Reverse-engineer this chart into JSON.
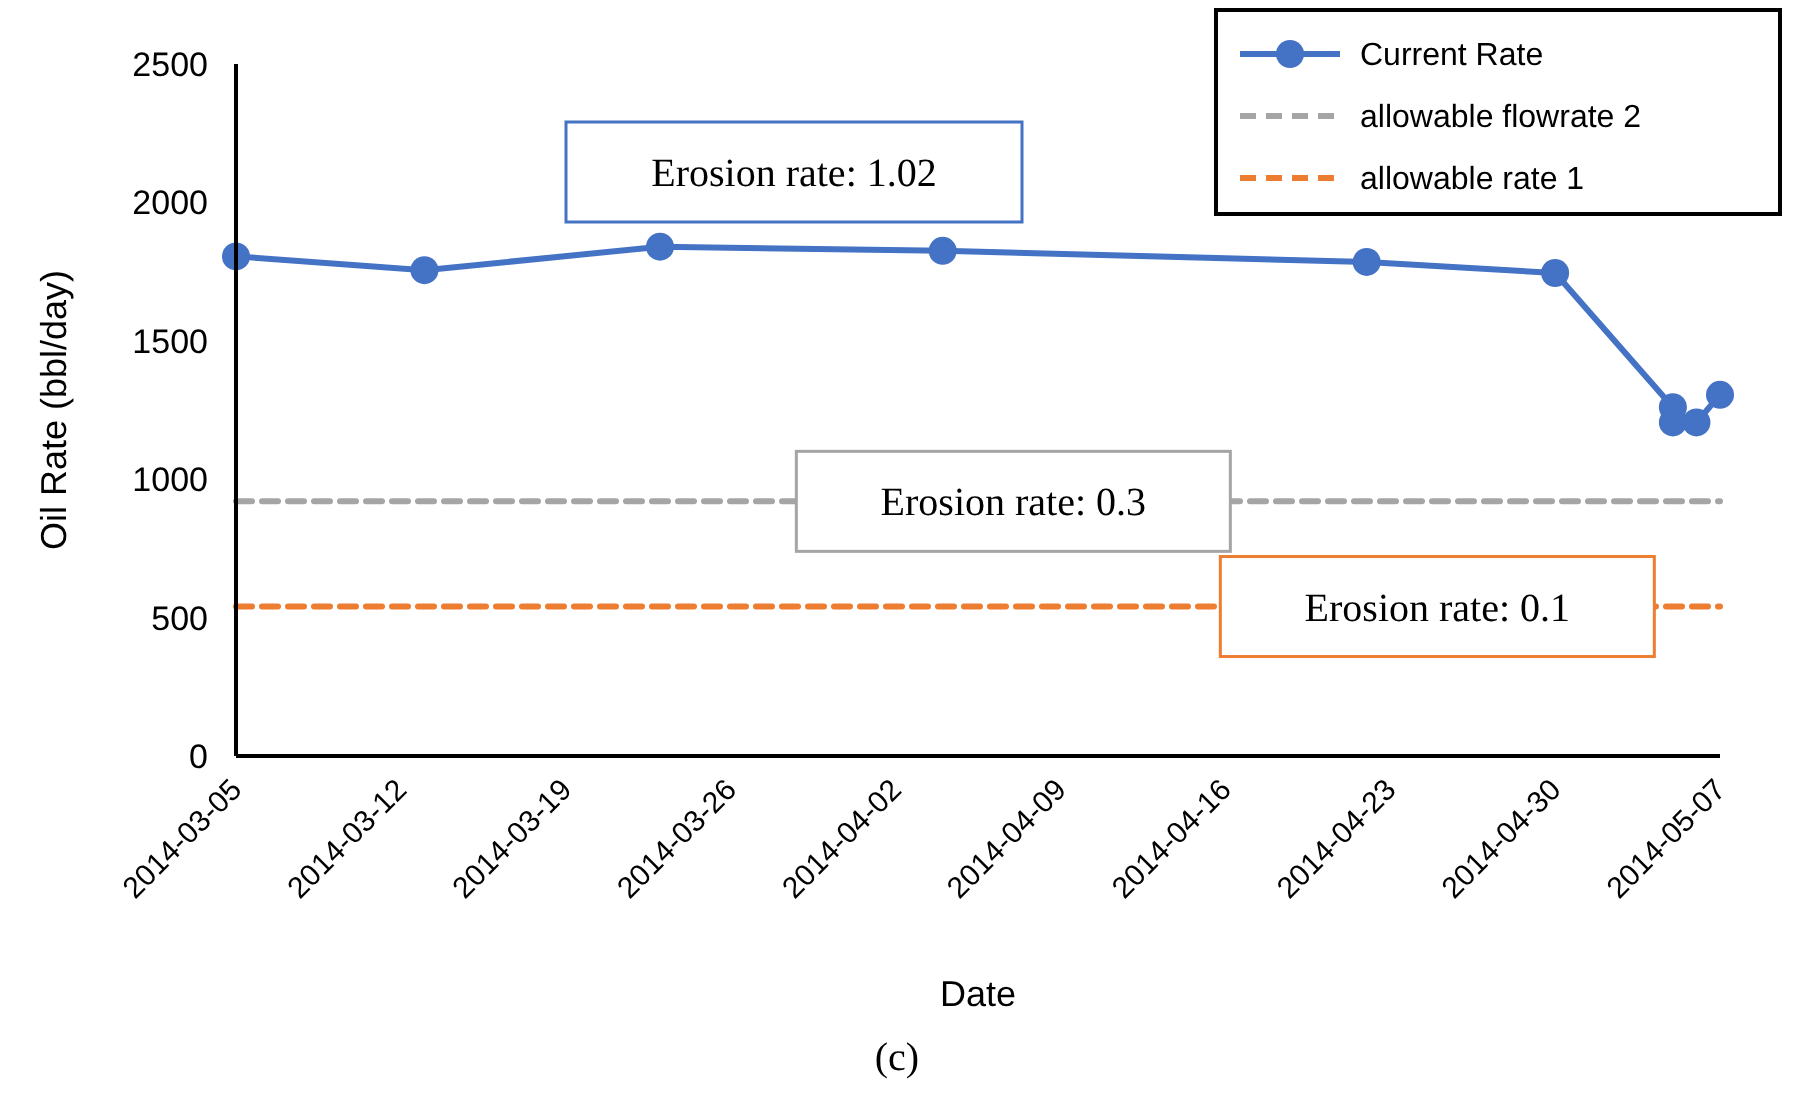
{
  "chart_data": {
    "type": "line",
    "xlabel": "Date",
    "ylabel": "Oil Rate (bbl/day)",
    "xlim": [
      "2014-03-05",
      "2014-05-07"
    ],
    "xticks": [
      "2014-03-05",
      "2014-03-12",
      "2014-03-19",
      "2014-03-26",
      "2014-04-02",
      "2014-04-09",
      "2014-04-16",
      "2014-04-23",
      "2014-04-30",
      "2014-05-07"
    ],
    "ylim": [
      0,
      2500
    ],
    "yticks": [
      0,
      500,
      1000,
      1500,
      2000,
      2500
    ],
    "grid": false,
    "legend": "top right",
    "series": [
      {
        "name": "Current Rate",
        "color": "#4472c4",
        "marker": "circle",
        "line_style": "solid",
        "x": [
          "2014-03-05",
          "2014-03-13",
          "2014-03-23",
          "2014-04-04",
          "2014-04-22",
          "2014-04-30",
          "2014-05-05",
          "2014-05-05",
          "2014-05-06",
          "2014-05-07"
        ],
        "values": [
          1805,
          1755,
          1840,
          1825,
          1785,
          1745,
          1260,
          1205,
          1205,
          1305
        ]
      },
      {
        "name": "allowable flowrate 2",
        "color": "#a5a5a5",
        "marker": "none",
        "line_style": "dashed",
        "x": [
          "2014-03-05",
          "2014-05-07"
        ],
        "values": [
          920,
          920
        ]
      },
      {
        "name": "allowable rate 1",
        "color": "#ed7d31",
        "marker": "none",
        "line_style": "dashed",
        "x": [
          "2014-03-05",
          "2014-05-07"
        ],
        "values": [
          540,
          540
        ]
      }
    ],
    "annotations": [
      "Erosion rate: 1.02",
      {
        "text": "Erosion rate: 0.3",
        "x": "2014-04-07",
        "y": 920
      },
      {
        "text": "Erosion rate: 0.1",
        "x": "2014-04-25",
        "y": 540
      },
      "(c)"
    ]
  }
}
